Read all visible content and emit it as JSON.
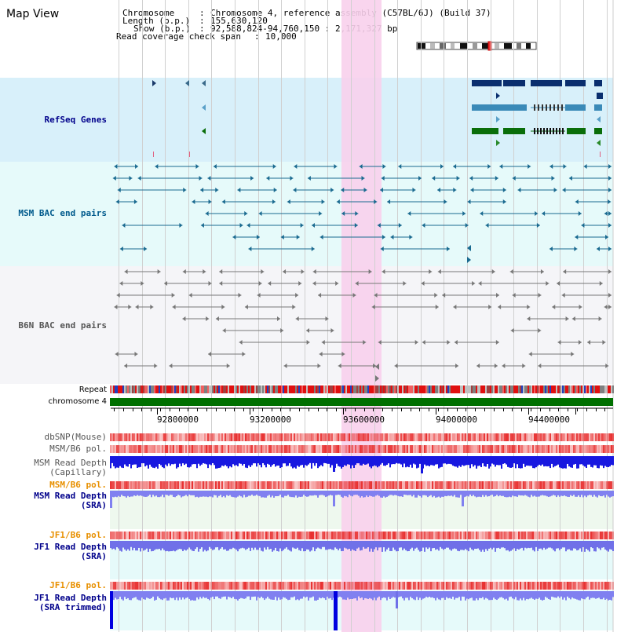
{
  "title": "Map View",
  "header": {
    "chromosome_key": "Chromosome",
    "chromosome_val": "Chromosome 4, reference assembly (C57BL/6J) (Build 37)",
    "length_key": "Length (b.p.)",
    "length_val": "155,630,120",
    "show_key": "Show (b.p.)",
    "show_val": "92,588,824-94,760,150 : 2,171,327 bp",
    "coverage_key": "Read coverage check span",
    "coverage_val": "10,000"
  },
  "tracks": {
    "refseq": "RefSeq Genes",
    "msm_bac": "MSM BAC end pairs",
    "b6n_bac": "B6N BAC end pairs",
    "repeat": "Repeat",
    "chromosome": "chromosome 4",
    "dbsnp": "dbSNP(Mouse)",
    "msm_b6_pol_1": "MSM/B6 pol.",
    "msm_read_depth_cap_1": "MSM Read Depth",
    "msm_read_depth_cap_2": "(Capillary)",
    "msm_b6_pol_2": "MSM/B6 pol.",
    "msm_read_depth_sra_1": "MSM Read Depth",
    "msm_read_depth_sra_2": "(SRA)",
    "jf1_b6_pol_1": "JF1/B6 pol.",
    "jf1_read_depth_sra_1": "JF1 Read Depth",
    "jf1_read_depth_sra_2": "(SRA)",
    "jf1_b6_pol_2": "JF1/B6 pol.",
    "jf1_read_depth_trim_1": "JF1 Read Depth",
    "jf1_read_depth_trim_2": "(SRA trimmed)"
  },
  "axis": {
    "ticks": [
      "92800000",
      "93200000",
      "93600000",
      "94000000",
      "94400000"
    ]
  },
  "colors": {
    "refseq_bg": "#d8f0fa",
    "bac_bg": "#e6fafa",
    "b6n_bg": "#f5f5f8",
    "highlight": "#f8d0ec",
    "chrom_green": "#007000",
    "refseq_label": "#00008b",
    "msm_label": "#005a8c",
    "b6n_label": "#555555",
    "orange": "#e89000",
    "blue": "#1818e8",
    "purple": "#8080f0"
  }
}
